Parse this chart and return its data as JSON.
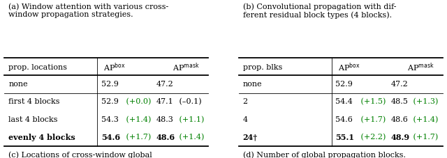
{
  "left_caption_a": "(a) Window attention with various cross-\nwindow propagation strategies.",
  "right_caption_b": "(b) Convolutional propagation with dif-\nferent residual block types (4 blocks).",
  "left_caption_c": "(c) Locations of cross-window global\npropagation blocks.",
  "right_caption_d": "(d) Number of global propagation blocks.\n†: Memory optimization required.",
  "left_table": {
    "header": [
      "prop. locations",
      "AP$^{\\mathrm{box}}$",
      "AP$^{\\mathrm{mask}}$"
    ],
    "rows": [
      {
        "col0": "none",
        "col1_main": "52.9",
        "col1_delta": "",
        "col2_main": "47.2",
        "col2_delta": "",
        "bold": false
      },
      {
        "col0": "first 4 blocks",
        "col1_main": "52.9",
        "col1_delta": " (+0.0)",
        "col2_main": "47.1",
        "col2_delta": " (–0.1)",
        "bold": false
      },
      {
        "col0": "last 4 blocks",
        "col1_main": "54.3",
        "col1_delta": " (+1.4)",
        "col2_main": "48.3",
        "col2_delta": " (+1.1)",
        "bold": false
      },
      {
        "col0": "evenly 4 blocks",
        "col1_main": "54.6",
        "col1_delta": " (+1.7)",
        "col2_main": "48.6",
        "col2_delta": " (+1.4)",
        "bold": true
      }
    ]
  },
  "right_table": {
    "header": [
      "prop. blks",
      "AP$^{\\mathrm{box}}$",
      "AP$^{\\mathrm{mask}}$"
    ],
    "rows": [
      {
        "col0": "none",
        "col1_main": "52.9",
        "col1_delta": "",
        "col2_main": "47.2",
        "col2_delta": "",
        "bold": false
      },
      {
        "col0": "2",
        "col1_main": "54.4",
        "col1_delta": " (+1.5)",
        "col2_main": "48.5",
        "col2_delta": " (+1.3)",
        "bold": false
      },
      {
        "col0": "4",
        "col1_main": "54.6",
        "col1_delta": " (+1.7)",
        "col2_main": "48.6",
        "col2_delta": " (+1.4)",
        "bold": false
      },
      {
        "col0": "24†",
        "col1_main": "55.1",
        "col1_delta": " (+2.2)",
        "col2_main": "48.9",
        "col2_delta": " (+1.7)",
        "bold": true
      }
    ]
  },
  "green_color": "#008000",
  "black_color": "#000000",
  "bg_color": "#ffffff",
  "fontsize": 8.0
}
